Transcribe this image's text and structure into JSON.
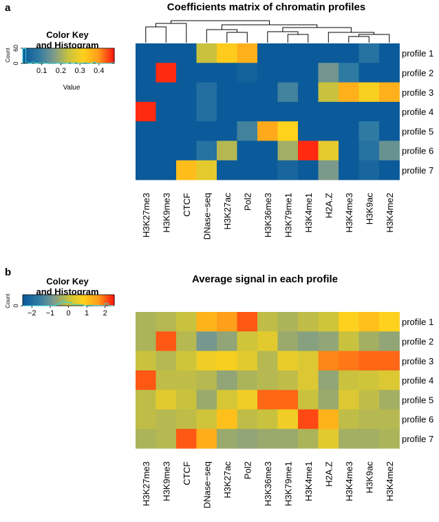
{
  "chart_data": [
    {
      "panel_label": "a",
      "type": "heatmap",
      "title": "Coefficients matrix of chromatin profiles",
      "columns": [
        "H3K27me3",
        "H3K9me3",
        "CTCF",
        "DNase−seq",
        "H3K27ac",
        "Pol2",
        "H3K36me3",
        "H3K79me1",
        "H3K4me1",
        "H2A.Z",
        "H3K4me3",
        "H3K9ac",
        "H3K4me2"
      ],
      "rows": [
        "profile 1",
        "profile 2",
        "profile 3",
        "profile 4",
        "profile 5",
        "profile 6",
        "profile 7"
      ],
      "values": [
        [
          0.0,
          0.0,
          0.0,
          0.24,
          0.33,
          0.37,
          0.0,
          0.0,
          0.0,
          0.0,
          0.0,
          0.06,
          0.0
        ],
        [
          0.0,
          0.47,
          0.0,
          0.0,
          0.0,
          0.02,
          0.0,
          0.0,
          0.0,
          0.15,
          0.08,
          0.0,
          0.0
        ],
        [
          0.0,
          0.0,
          0.0,
          0.05,
          0.0,
          0.0,
          0.0,
          0.1,
          0.0,
          0.24,
          0.37,
          0.31,
          0.37
        ],
        [
          0.47,
          0.0,
          0.0,
          0.05,
          0.0,
          0.0,
          0.0,
          0.0,
          0.0,
          0.0,
          0.0,
          0.0,
          0.0
        ],
        [
          0.0,
          0.0,
          0.0,
          0.0,
          0.0,
          0.1,
          0.38,
          0.32,
          0.0,
          0.0,
          0.0,
          0.08,
          0.0
        ],
        [
          0.0,
          0.0,
          0.0,
          0.06,
          0.22,
          0.0,
          0.0,
          0.2,
          0.47,
          0.28,
          0.0,
          0.06,
          0.14
        ],
        [
          0.0,
          0.0,
          0.35,
          0.28,
          0.0,
          0.0,
          0.0,
          0.03,
          0.0,
          0.16,
          0.0,
          0.03,
          0.0
        ]
      ],
      "color_key": {
        "title_line1": "Color Key",
        "title_line2": "and Histogram",
        "ylabel": "Count",
        "yticks": [
          "0",
          "60"
        ],
        "xticks": [
          "0.1",
          "0.2",
          "0.3",
          "0.4"
        ],
        "xlabel": "Value",
        "range": [
          0.0,
          0.48
        ]
      },
      "colormap": [
        "#0b5a9a",
        "#2f7aa3",
        "#7b9a8c",
        "#c8c23e",
        "#ffd21c",
        "#ff9b1a",
        "#ff1a10"
      ]
    },
    {
      "panel_label": "b",
      "type": "heatmap",
      "title": "Average signal in each profile",
      "columns": [
        "H3K27me3",
        "H3K9me3",
        "CTCF",
        "DNase−seq",
        "H3K27ac",
        "Pol2",
        "H3K36me3",
        "H3K79me1",
        "H3K4me1",
        "H2A.Z",
        "H3K4me3",
        "H3K9ac",
        "H3K4me2"
      ],
      "rows": [
        "profile 1",
        "profile 2",
        "profile 3",
        "profile 4",
        "profile 5",
        "profile 6",
        "profile 7"
      ],
      "values": [
        [
          -0.3,
          -0.2,
          0.0,
          1.3,
          1.6,
          2.1,
          -0.1,
          -0.3,
          -0.1,
          0.1,
          0.8,
          1.1,
          0.8
        ],
        [
          -0.3,
          2.1,
          -0.2,
          -0.9,
          -0.6,
          0.1,
          0.4,
          -0.5,
          -0.7,
          -0.6,
          0.0,
          -0.4,
          -0.6
        ],
        [
          0.0,
          -0.2,
          0.1,
          0.6,
          0.7,
          0.4,
          -0.2,
          0.5,
          0.3,
          1.8,
          1.9,
          2.0,
          2.0
        ],
        [
          2.1,
          -0.1,
          -0.1,
          -0.2,
          -0.6,
          -0.3,
          -0.2,
          -0.1,
          0.3,
          -0.6,
          0.0,
          0.1,
          0.3
        ],
        [
          -0.1,
          0.4,
          0.0,
          -0.5,
          0.2,
          0.6,
          2.0,
          2.0,
          0.0,
          -0.5,
          0.3,
          -0.1,
          -0.4
        ],
        [
          -0.1,
          -0.2,
          -0.1,
          0.1,
          1.1,
          -0.1,
          0.0,
          0.6,
          2.2,
          1.3,
          -0.1,
          -0.2,
          -0.2
        ],
        [
          -0.3,
          -0.2,
          2.1,
          1.4,
          -0.5,
          -0.6,
          -0.5,
          -0.5,
          -0.3,
          0.4,
          -0.4,
          -0.4,
          -0.3
        ]
      ],
      "color_key": {
        "title_line1": "Color Key",
        "title_line2": "and Histogram",
        "ylabel": "Count",
        "yticks": [
          "0"
        ],
        "xticks": [
          "−2",
          "−1",
          "0",
          "1",
          "2"
        ],
        "range": [
          -2.5,
          2.5
        ]
      },
      "colormap": [
        "#0b5a9a",
        "#2f7aa3",
        "#7b9a8c",
        "#c8c23e",
        "#ffd21c",
        "#ff9b1a",
        "#ff1a10"
      ]
    }
  ]
}
